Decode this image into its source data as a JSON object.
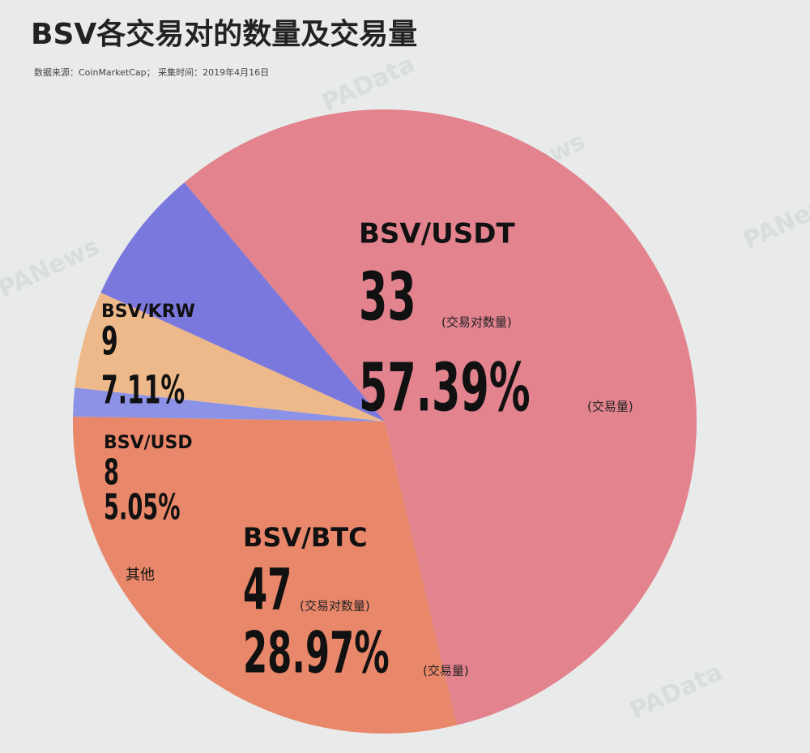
{
  "chart_data": {
    "type": "pie",
    "title": "BSV各交易对的数量及交易量",
    "subtitle": "数据来源：CoinMarketCap； 采集时间：2019年4月16日",
    "categories": [
      "BSV/USDT",
      "BSV/BTC",
      "其他",
      "BSV/USD",
      "BSV/KRW"
    ],
    "values": [
      57.39,
      28.97,
      1.48,
      5.05,
      7.11
    ],
    "value_labels": [
      "57.39%",
      "28.97%",
      null,
      "5.05%",
      "7.11%"
    ],
    "counts": [
      33,
      47,
      null,
      8,
      9
    ],
    "count_note": "(交易对数量)",
    "share_note": "(交易量)",
    "colors": [
      "#e2838e",
      "#e8876a",
      "#8c93e6",
      "#eeb98a",
      "#7a78dc"
    ],
    "watermarks": [
      "PANews",
      "PAData"
    ]
  }
}
